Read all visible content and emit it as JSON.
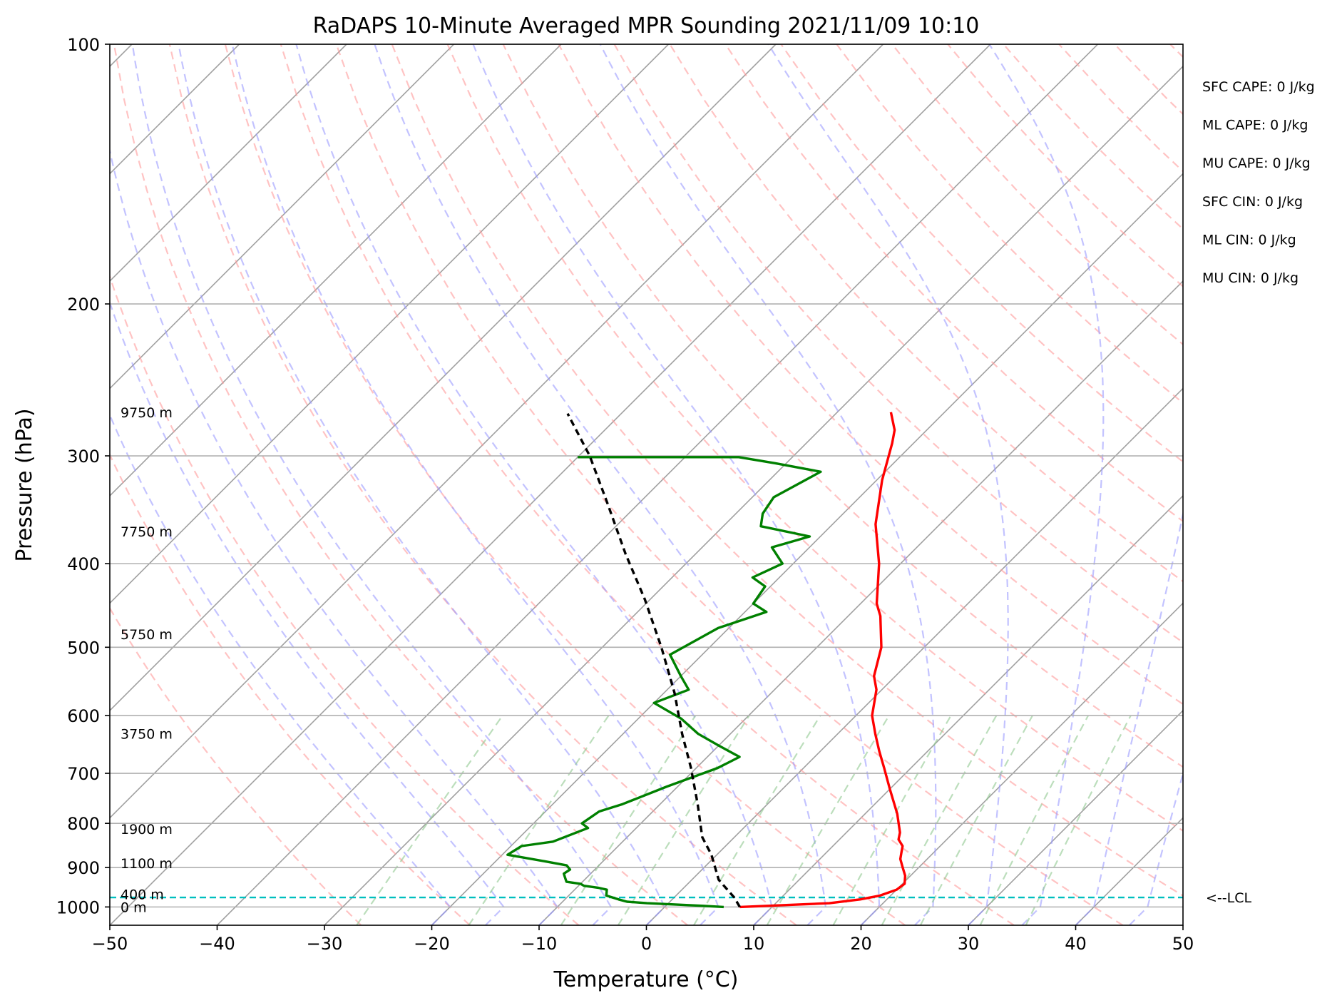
{
  "chart_data": {
    "type": "line",
    "title": "RaDAPS 10-Minute Averaged MPR Sounding 2021/11/09 10:10",
    "xlabel": "Temperature (°C)",
    "ylabel": "Pressure (hPa)",
    "xlim": [
      -50,
      50
    ],
    "ylim": [
      1050,
      100
    ],
    "y_scale": "log",
    "grid": true,
    "x_ticks": [
      -50,
      -40,
      -30,
      -20,
      -10,
      0,
      10,
      20,
      30,
      40,
      50
    ],
    "x_tick_labels": [
      "−50",
      "−40",
      "−30",
      "−20",
      "−10",
      "0",
      "10",
      "20",
      "30",
      "40",
      "50"
    ],
    "y_ticks": [
      100,
      200,
      300,
      400,
      500,
      600,
      700,
      800,
      900,
      1000
    ],
    "y_tick_labels": [
      "100",
      "200",
      "300",
      "400",
      "500",
      "600",
      "700",
      "800",
      "900",
      "1000"
    ],
    "series": [
      {
        "color": "#ff0000",
        "points": [
          [
            7.0,
            1000
          ],
          [
            15.0,
            990
          ],
          [
            17.5,
            980
          ],
          [
            19.0,
            970
          ],
          [
            20.0,
            955
          ],
          [
            20.2,
            940
          ],
          [
            19.5,
            920
          ],
          [
            18.5,
            900
          ],
          [
            17.5,
            880
          ],
          [
            17.0,
            865
          ],
          [
            16.5,
            850
          ],
          [
            15.5,
            835
          ],
          [
            15.0,
            820
          ],
          [
            13.0,
            780
          ],
          [
            10.0,
            730
          ],
          [
            7.5,
            690
          ],
          [
            5.5,
            660
          ],
          [
            3.5,
            630
          ],
          [
            1.5,
            600
          ],
          [
            -0.5,
            560
          ],
          [
            -2.0,
            540
          ],
          [
            -4.0,
            500
          ],
          [
            -7.0,
            460
          ],
          [
            -8.5,
            445
          ],
          [
            -12.0,
            400
          ],
          [
            -16.0,
            360
          ],
          [
            -19.5,
            320
          ],
          [
            -22.0,
            290
          ],
          [
            -23.0,
            280
          ],
          [
            -25.0,
            267
          ]
        ]
      },
      {
        "color": "#008000",
        "points": [
          [
            5.5,
            1000
          ],
          [
            3.5,
            997
          ],
          [
            -2.0,
            990
          ],
          [
            -4.0,
            986
          ],
          [
            -5.0,
            980
          ],
          [
            -6.5,
            970
          ],
          [
            -7.0,
            955
          ],
          [
            -8.0,
            950
          ],
          [
            -9.5,
            945
          ],
          [
            -10.0,
            940
          ],
          [
            -11.5,
            935
          ],
          [
            -12.0,
            925
          ],
          [
            -12.5,
            915
          ],
          [
            -12.3,
            905
          ],
          [
            -13.0,
            895
          ],
          [
            -15.5,
            885
          ],
          [
            -19.5,
            870
          ],
          [
            -19.0,
            850
          ],
          [
            -16.5,
            840
          ],
          [
            -14.5,
            810
          ],
          [
            -15.5,
            800
          ],
          [
            -15.0,
            775
          ],
          [
            -13.5,
            760
          ],
          [
            -11.0,
            725
          ],
          [
            -8.0,
            690
          ],
          [
            -7.0,
            670
          ],
          [
            -10.0,
            650
          ],
          [
            -13.0,
            630
          ],
          [
            -16.0,
            605
          ],
          [
            -20.0,
            580
          ],
          [
            -18.0,
            560
          ],
          [
            -20.0,
            540
          ],
          [
            -23.0,
            510
          ],
          [
            -21.0,
            475
          ],
          [
            -18.0,
            455
          ],
          [
            -20.0,
            445
          ],
          [
            -20.5,
            425
          ],
          [
            -22.5,
            415
          ],
          [
            -21.0,
            400
          ],
          [
            -23.5,
            383
          ],
          [
            -21.0,
            372
          ],
          [
            -26.5,
            362
          ],
          [
            -27.5,
            350
          ],
          [
            -28.0,
            335
          ],
          [
            -26.0,
            313
          ],
          [
            -31.0,
            306
          ],
          [
            -35.0,
            301
          ],
          [
            -50.0,
            301
          ]
        ]
      },
      {
        "color": "#000000",
        "dashed": true,
        "points": [
          [
            7.0,
            1000
          ],
          [
            5.6,
            975
          ],
          [
            2.5,
            930
          ],
          [
            -0.5,
            870
          ],
          [
            -3.0,
            830
          ],
          [
            -6.5,
            760
          ],
          [
            -10.5,
            690
          ],
          [
            -14.5,
            630
          ],
          [
            -19.0,
            565
          ],
          [
            -24.5,
            500
          ],
          [
            -30.5,
            440
          ],
          [
            -36.5,
            390
          ],
          [
            -43.0,
            340
          ],
          [
            -49.0,
            300
          ],
          [
            -55.0,
            268
          ]
        ]
      }
    ],
    "lcl": {
      "pressure": 975,
      "label": "<--LCL",
      "color": "#00bfbf"
    },
    "height_labels": [
      {
        "text": "9750 m",
        "p": 267
      },
      {
        "text": "7750 m",
        "p": 367
      },
      {
        "text": "5750 m",
        "p": 483
      },
      {
        "text": "3750 m",
        "p": 630
      },
      {
        "text": "1900 m",
        "p": 812
      },
      {
        "text": "1100 m",
        "p": 890
      },
      {
        "text": "400 m",
        "p": 967
      },
      {
        "text": "0 m",
        "p": 1000
      }
    ],
    "annotations": [
      "SFC CAPE: 0 J/kg",
      "ML CAPE: 0 J/kg",
      "MU CAPE: 0 J/kg",
      "SFC CIN: 0 J/kg",
      "ML CIN: 0 J/kg",
      "MU CIN: 0 J/kg"
    ],
    "reference_lines": {
      "isotherms_color": "#a0a0a0",
      "dry_adiabats_color": "#ff9b9b",
      "moist_adiabats_color": "#9b9bff",
      "mixing_ratio_color": "#8fc88f"
    }
  }
}
